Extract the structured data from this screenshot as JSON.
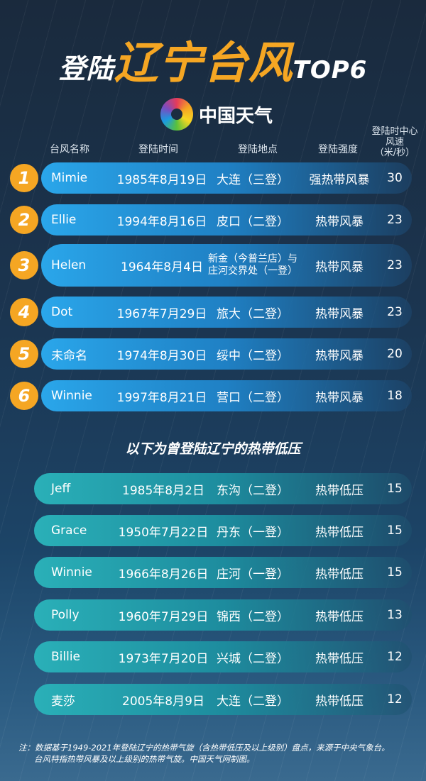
{
  "title": {
    "part1": "登陆",
    "part2": "辽宁台风",
    "part3": "TOP6"
  },
  "logo": {
    "text": "中国天气"
  },
  "headers": {
    "name": "台风名称",
    "date": "登陆时间",
    "location": "登陆地点",
    "intensity": "登陆强度",
    "speed": "登陆时中心风速",
    "speed_unit": "（米/秒）"
  },
  "top6": [
    {
      "rank": "1",
      "name": "Mimie",
      "date": "1985年8月19日",
      "location": "大连（三登）",
      "intensity": "强热带风暴",
      "speed": "30"
    },
    {
      "rank": "2",
      "name": "Ellie",
      "date": "1994年8月16日",
      "location": "皮口（二登）",
      "intensity": "热带风暴",
      "speed": "23"
    },
    {
      "rank": "3",
      "name": "Helen",
      "date": "1964年8月4日",
      "location": "新金（今普兰店）与庄河交界处（一登）",
      "location_line1": "新金（今普兰店）与",
      "location_line2": "庄河交界处（一登）",
      "intensity": "热带风暴",
      "speed": "23"
    },
    {
      "rank": "4",
      "name": "Dot",
      "date": "1967年7月29日",
      "location": "旅大（二登）",
      "intensity": "热带风暴",
      "speed": "23"
    },
    {
      "rank": "5",
      "name": "未命名",
      "date": "1974年8月30日",
      "location": "绥中（二登）",
      "intensity": "热带风暴",
      "speed": "20"
    },
    {
      "rank": "6",
      "name": "Winnie",
      "date": "1997年8月21日",
      "location": "营口（二登）",
      "intensity": "热带风暴",
      "speed": "18"
    }
  ],
  "subtitle": "以下为曾登陆辽宁的热带低压",
  "depressions": [
    {
      "name": "Jeff",
      "date": "1985年8月2日",
      "location": "东沟（二登）",
      "intensity": "热带低压",
      "speed": "15"
    },
    {
      "name": "Grace",
      "date": "1950年7月22日",
      "location": "丹东（一登）",
      "intensity": "热带低压",
      "speed": "15"
    },
    {
      "name": "Winnie",
      "date": "1966年8月26日",
      "location": "庄河（一登）",
      "intensity": "热带低压",
      "speed": "15"
    },
    {
      "name": "Polly",
      "date": "1960年7月29日",
      "location": "锦西（二登）",
      "intensity": "热带低压",
      "speed": "13"
    },
    {
      "name": "Billie",
      "date": "1973年7月20日",
      "location": "兴城（二登）",
      "intensity": "热带低压",
      "speed": "12"
    },
    {
      "name": "麦莎",
      "date": "2005年8月9日",
      "location": "大连（二登）",
      "intensity": "热带低压",
      "speed": "12"
    }
  ],
  "note": {
    "line1": "注：数据基于1949-2021年登陆辽宁的热带气旋（含热带低压及以上级别）盘点，来源于中央气象台。",
    "line2": "台风特指热带风暴及以上级别的热带气旋。中国天气网制图。"
  },
  "colors": {
    "accent": "#f5a623",
    "top_row": "#2aa6ea",
    "low_row": "#2ab0b8"
  }
}
